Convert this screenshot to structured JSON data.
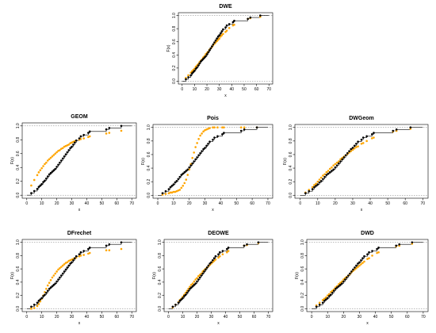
{
  "chart_data": {
    "type": "scatter",
    "shared": {
      "xlabel": "x",
      "ylabel": "F(x)",
      "xlim": [
        0,
        70
      ],
      "ylim": [
        0,
        1
      ],
      "xticks": [
        0,
        10,
        20,
        30,
        40,
        50,
        60,
        70
      ],
      "yticks": [
        0.0,
        0.2,
        0.4,
        0.6,
        0.8,
        1.0
      ],
      "colors": {
        "empirical": "#000000",
        "fitted": "#FFA500",
        "reference": "#777777"
      },
      "empirical": {
        "x": [
          3,
          5,
          7,
          8,
          9,
          10,
          11,
          12,
          13,
          14,
          15,
          16,
          17,
          18,
          19,
          20,
          21,
          22,
          23,
          24,
          25,
          26,
          27,
          28,
          29,
          30,
          31,
          32,
          33,
          35,
          36,
          38,
          41,
          42,
          53,
          55,
          63
        ],
        "y": [
          0.03,
          0.06,
          0.09,
          0.12,
          0.14,
          0.16,
          0.19,
          0.21,
          0.24,
          0.27,
          0.3,
          0.32,
          0.34,
          0.36,
          0.38,
          0.41,
          0.44,
          0.47,
          0.5,
          0.53,
          0.56,
          0.59,
          0.62,
          0.65,
          0.68,
          0.7,
          0.73,
          0.76,
          0.79,
          0.82,
          0.85,
          0.87,
          0.9,
          0.92,
          0.95,
          0.97,
          1.0
        ]
      }
    },
    "panels": [
      {
        "title": "DWE",
        "fitted_y": [
          0.05,
          0.09,
          0.13,
          0.15,
          0.17,
          0.19,
          0.22,
          0.24,
          0.26,
          0.29,
          0.31,
          0.33,
          0.36,
          0.38,
          0.41,
          0.43,
          0.45,
          0.48,
          0.5,
          0.52,
          0.55,
          0.57,
          0.59,
          0.61,
          0.63,
          0.65,
          0.68,
          0.7,
          0.72,
          0.75,
          0.77,
          0.81,
          0.85,
          0.86,
          0.95,
          0.96,
          0.98
        ]
      },
      {
        "title": "GEOM",
        "fitted_y": [
          0.14,
          0.22,
          0.29,
          0.33,
          0.36,
          0.39,
          0.42,
          0.45,
          0.47,
          0.5,
          0.52,
          0.54,
          0.56,
          0.58,
          0.6,
          0.62,
          0.64,
          0.65,
          0.67,
          0.68,
          0.7,
          0.71,
          0.72,
          0.73,
          0.75,
          0.76,
          0.77,
          0.78,
          0.79,
          0.8,
          0.81,
          0.82,
          0.84,
          0.85,
          0.89,
          0.9,
          0.93
        ]
      },
      {
        "title": "Pois",
        "fitted_y": [
          0.01,
          0.02,
          0.03,
          0.04,
          0.04,
          0.05,
          0.05,
          0.06,
          0.07,
          0.08,
          0.11,
          0.14,
          0.18,
          0.23,
          0.3,
          0.38,
          0.46,
          0.55,
          0.63,
          0.71,
          0.77,
          0.83,
          0.88,
          0.91,
          0.94,
          0.96,
          0.97,
          0.98,
          0.99,
          1.0,
          1.0,
          1.0,
          1.0,
          1.0,
          1.0,
          1.0,
          1.0
        ]
      },
      {
        "title": "DWGeom",
        "fitted_y": [
          0.04,
          0.08,
          0.12,
          0.15,
          0.17,
          0.2,
          0.23,
          0.26,
          0.29,
          0.31,
          0.34,
          0.36,
          0.39,
          0.41,
          0.44,
          0.46,
          0.48,
          0.5,
          0.53,
          0.55,
          0.57,
          0.59,
          0.61,
          0.63,
          0.65,
          0.67,
          0.69,
          0.71,
          0.72,
          0.76,
          0.77,
          0.8,
          0.84,
          0.85,
          0.94,
          0.95,
          0.98
        ]
      },
      {
        "title": "DFrechet",
        "fitted_y": [
          0.0,
          0.01,
          0.04,
          0.07,
          0.11,
          0.15,
          0.2,
          0.25,
          0.3,
          0.35,
          0.39,
          0.43,
          0.47,
          0.5,
          0.53,
          0.56,
          0.59,
          0.61,
          0.63,
          0.65,
          0.67,
          0.69,
          0.7,
          0.72,
          0.73,
          0.74,
          0.75,
          0.76,
          0.77,
          0.79,
          0.8,
          0.81,
          0.83,
          0.84,
          0.88,
          0.88,
          0.9
        ]
      },
      {
        "title": "DEOWE",
        "fitted_y": [
          0.02,
          0.06,
          0.1,
          0.13,
          0.15,
          0.18,
          0.21,
          0.24,
          0.27,
          0.3,
          0.33,
          0.36,
          0.38,
          0.41,
          0.44,
          0.46,
          0.49,
          0.51,
          0.53,
          0.56,
          0.58,
          0.6,
          0.62,
          0.64,
          0.66,
          0.68,
          0.7,
          0.72,
          0.74,
          0.77,
          0.79,
          0.82,
          0.85,
          0.87,
          0.95,
          0.96,
          0.99
        ]
      },
      {
        "title": "DWD",
        "fitted_y": [
          0.05,
          0.09,
          0.13,
          0.15,
          0.17,
          0.2,
          0.22,
          0.25,
          0.27,
          0.29,
          0.32,
          0.34,
          0.37,
          0.39,
          0.41,
          0.44,
          0.46,
          0.48,
          0.5,
          0.52,
          0.55,
          0.57,
          0.59,
          0.61,
          0.63,
          0.65,
          0.67,
          0.69,
          0.71,
          0.75,
          0.76,
          0.8,
          0.84,
          0.85,
          0.94,
          0.95,
          0.98
        ]
      }
    ]
  }
}
